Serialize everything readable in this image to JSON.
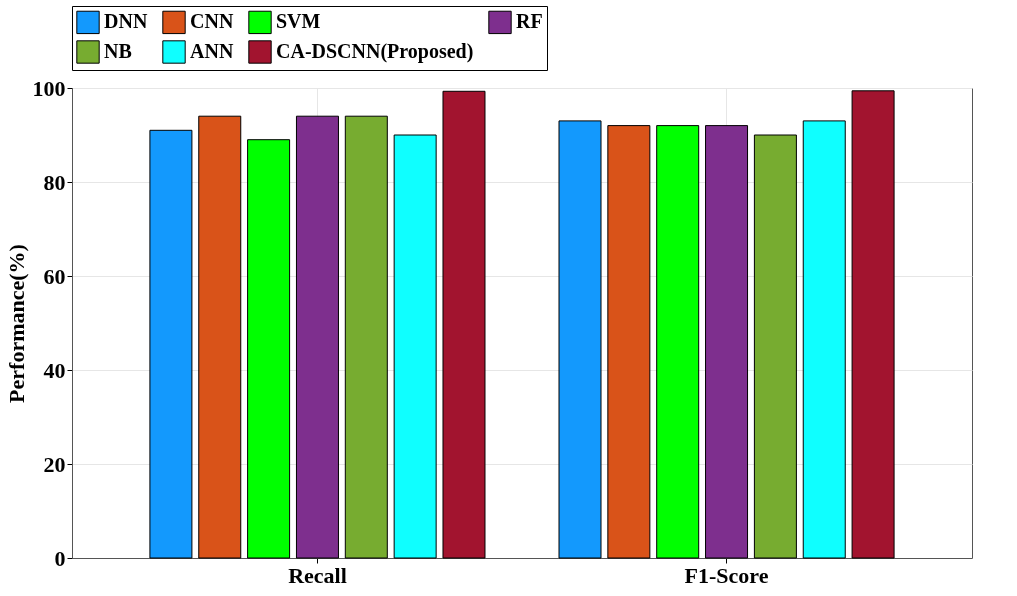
{
  "chart_data": {
    "type": "bar",
    "ylabel": "Performance(%)",
    "categories": [
      "Recall",
      "F1-Score"
    ],
    "series": [
      {
        "name": "DNN",
        "color": "#1399fd",
        "values": [
          91,
          93
        ]
      },
      {
        "name": "CNN",
        "color": "#d95319",
        "values": [
          94,
          92
        ]
      },
      {
        "name": "SVM",
        "color": "#00ff00",
        "values": [
          89,
          92
        ]
      },
      {
        "name": "RF",
        "color": "#7e2f8e",
        "values": [
          94,
          92
        ]
      },
      {
        "name": "NB",
        "color": "#77ac30",
        "values": [
          94,
          90
        ]
      },
      {
        "name": "ANN",
        "color": "#0fffff",
        "values": [
          90,
          93
        ]
      },
      {
        "name": "CA-DSCNN(Proposed)",
        "color": "#a2142f",
        "values": [
          99.3,
          99.4
        ]
      }
    ],
    "ylim": [
      0,
      100
    ],
    "yticks": [
      0,
      20,
      40,
      60,
      80,
      100
    ],
    "grid": true,
    "legend": "top"
  }
}
